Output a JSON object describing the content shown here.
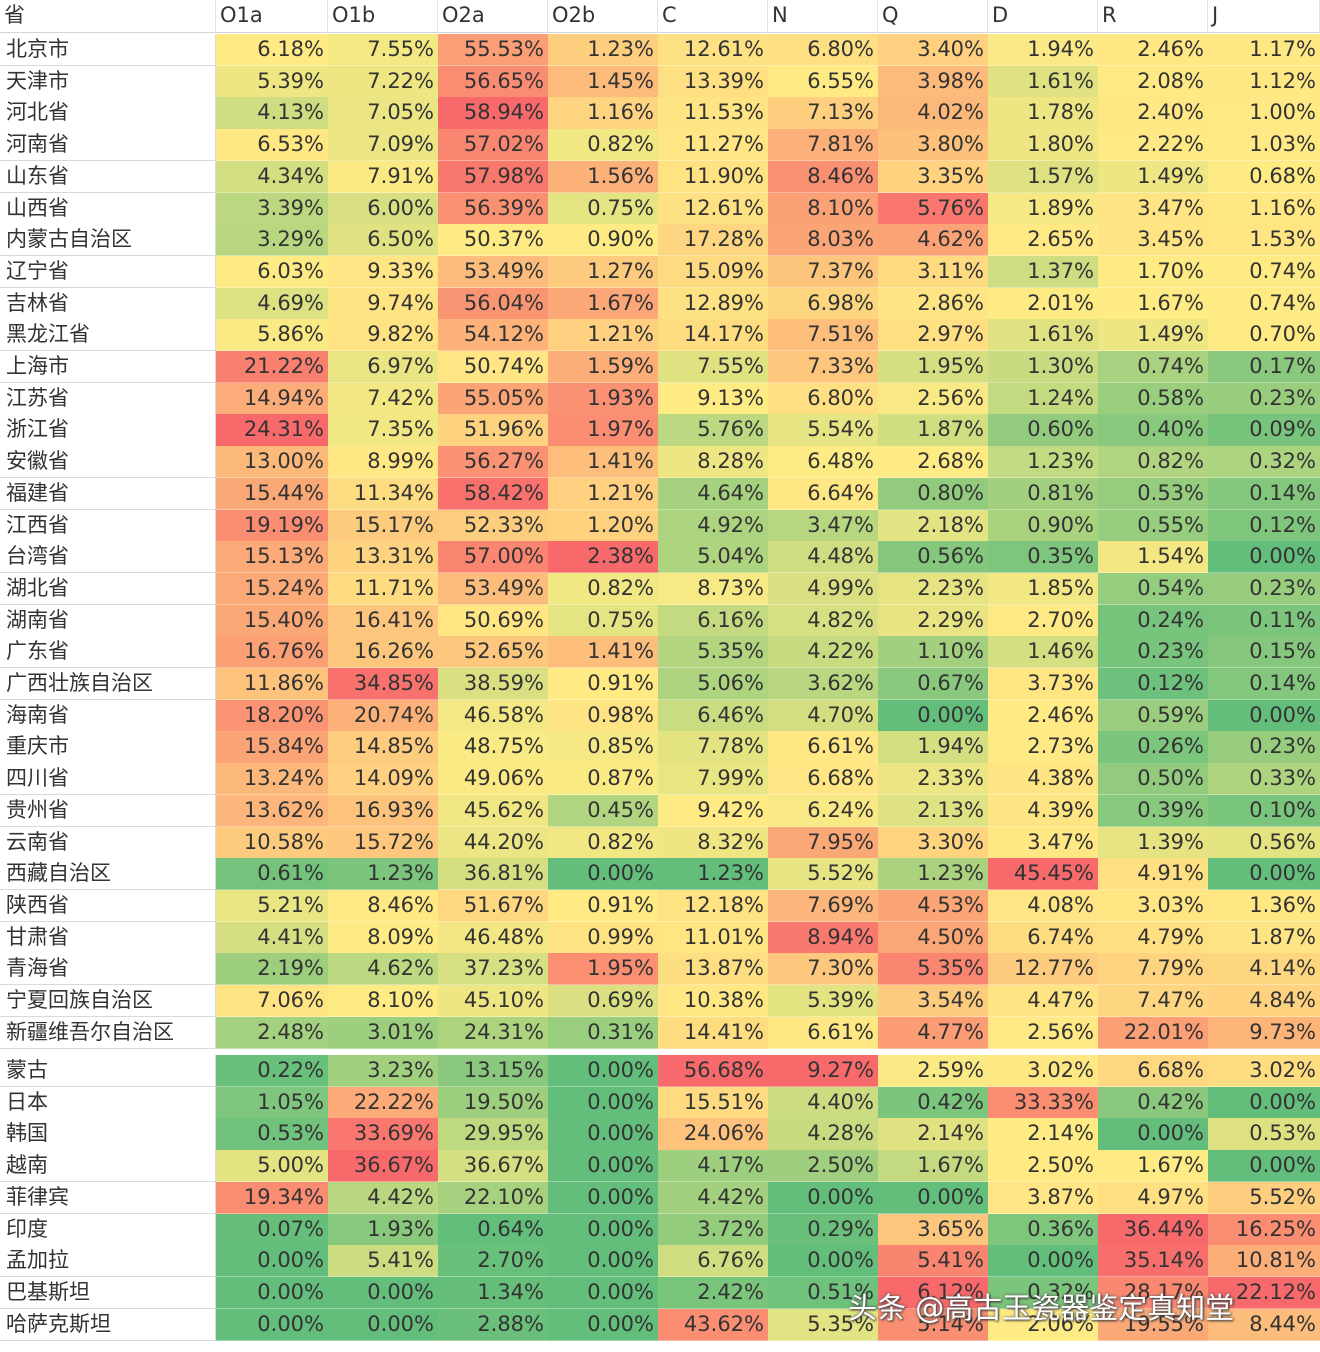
{
  "table": {
    "header": [
      "省",
      "O1a",
      "O1b",
      "O2a",
      "O2b",
      "C",
      "N",
      "Q",
      "D",
      "R",
      "J"
    ],
    "rows": [
      [
        "北京市",
        "6.18%",
        "7.55%",
        "55.53%",
        "1.23%",
        "12.61%",
        "6.80%",
        "3.40%",
        "1.94%",
        "2.46%",
        "1.17%"
      ],
      [
        "天津市",
        "5.39%",
        "7.22%",
        "56.65%",
        "1.45%",
        "13.39%",
        "6.55%",
        "3.98%",
        "1.61%",
        "2.08%",
        "1.12%"
      ],
      [
        "河北省",
        "4.13%",
        "7.05%",
        "58.94%",
        "1.16%",
        "11.53%",
        "7.13%",
        "4.02%",
        "1.78%",
        "2.40%",
        "1.00%"
      ],
      [
        "河南省",
        "6.53%",
        "7.09%",
        "57.02%",
        "0.82%",
        "11.27%",
        "7.81%",
        "3.80%",
        "1.80%",
        "2.22%",
        "1.03%"
      ],
      [
        "山东省",
        "4.34%",
        "7.91%",
        "57.98%",
        "1.56%",
        "11.90%",
        "8.46%",
        "3.35%",
        "1.57%",
        "1.49%",
        "0.68%"
      ],
      [
        "山西省",
        "3.39%",
        "6.00%",
        "56.39%",
        "0.75%",
        "12.61%",
        "8.10%",
        "5.76%",
        "1.89%",
        "3.47%",
        "1.16%"
      ],
      [
        "内蒙古自治区",
        "3.29%",
        "6.50%",
        "50.37%",
        "0.90%",
        "17.28%",
        "8.03%",
        "4.62%",
        "2.65%",
        "3.45%",
        "1.53%"
      ],
      [
        "辽宁省",
        "6.03%",
        "9.33%",
        "53.49%",
        "1.27%",
        "15.09%",
        "7.37%",
        "3.11%",
        "1.37%",
        "1.70%",
        "0.74%"
      ],
      [
        "吉林省",
        "4.69%",
        "9.74%",
        "56.04%",
        "1.67%",
        "12.89%",
        "6.98%",
        "2.86%",
        "2.01%",
        "1.67%",
        "0.74%"
      ],
      [
        "黑龙江省",
        "5.86%",
        "9.82%",
        "54.12%",
        "1.21%",
        "14.17%",
        "7.51%",
        "2.97%",
        "1.61%",
        "1.49%",
        "0.70%"
      ],
      [
        "上海市",
        "21.22%",
        "6.97%",
        "50.74%",
        "1.59%",
        "7.55%",
        "7.33%",
        "1.95%",
        "1.30%",
        "0.74%",
        "0.17%"
      ],
      [
        "江苏省",
        "14.94%",
        "7.42%",
        "55.05%",
        "1.93%",
        "9.13%",
        "6.80%",
        "2.56%",
        "1.24%",
        "0.58%",
        "0.23%"
      ],
      [
        "浙江省",
        "24.31%",
        "7.35%",
        "51.96%",
        "1.97%",
        "5.76%",
        "5.54%",
        "1.87%",
        "0.60%",
        "0.40%",
        "0.09%"
      ],
      [
        "安徽省",
        "13.00%",
        "8.99%",
        "56.27%",
        "1.41%",
        "8.28%",
        "6.48%",
        "2.68%",
        "1.23%",
        "0.82%",
        "0.32%"
      ],
      [
        "福建省",
        "15.44%",
        "11.34%",
        "58.42%",
        "1.21%",
        "4.64%",
        "6.64%",
        "0.80%",
        "0.81%",
        "0.53%",
        "0.14%"
      ],
      [
        "江西省",
        "19.19%",
        "15.17%",
        "52.33%",
        "1.20%",
        "4.92%",
        "3.47%",
        "2.18%",
        "0.90%",
        "0.55%",
        "0.12%"
      ],
      [
        "台湾省",
        "15.13%",
        "13.31%",
        "57.00%",
        "2.38%",
        "5.04%",
        "4.48%",
        "0.56%",
        "0.35%",
        "1.54%",
        "0.00%"
      ],
      [
        "湖北省",
        "15.24%",
        "11.71%",
        "53.49%",
        "0.82%",
        "8.73%",
        "4.99%",
        "2.23%",
        "1.85%",
        "0.54%",
        "0.23%"
      ],
      [
        "湖南省",
        "15.40%",
        "16.41%",
        "50.69%",
        "0.75%",
        "6.16%",
        "4.82%",
        "2.29%",
        "2.70%",
        "0.24%",
        "0.11%"
      ],
      [
        "广东省",
        "16.76%",
        "16.26%",
        "52.65%",
        "1.41%",
        "5.35%",
        "4.22%",
        "1.10%",
        "1.46%",
        "0.23%",
        "0.15%"
      ],
      [
        "广西壮族自治区",
        "11.86%",
        "34.85%",
        "38.59%",
        "0.91%",
        "5.06%",
        "3.62%",
        "0.67%",
        "3.73%",
        "0.12%",
        "0.14%"
      ],
      [
        "海南省",
        "18.20%",
        "20.74%",
        "46.58%",
        "0.98%",
        "6.46%",
        "4.70%",
        "0.00%",
        "2.46%",
        "0.59%",
        "0.00%"
      ],
      [
        "重庆市",
        "15.84%",
        "14.85%",
        "48.75%",
        "0.85%",
        "7.78%",
        "6.61%",
        "1.94%",
        "2.73%",
        "0.26%",
        "0.23%"
      ],
      [
        "四川省",
        "13.24%",
        "14.09%",
        "49.06%",
        "0.87%",
        "7.99%",
        "6.68%",
        "2.33%",
        "4.38%",
        "0.50%",
        "0.33%"
      ],
      [
        "贵州省",
        "13.62%",
        "16.93%",
        "45.62%",
        "0.45%",
        "9.42%",
        "6.24%",
        "2.13%",
        "4.39%",
        "0.39%",
        "0.10%"
      ],
      [
        "云南省",
        "10.58%",
        "15.72%",
        "44.20%",
        "0.82%",
        "8.32%",
        "7.95%",
        "3.30%",
        "3.47%",
        "1.39%",
        "0.56%"
      ],
      [
        "西藏自治区",
        "0.61%",
        "1.23%",
        "36.81%",
        "0.00%",
        "1.23%",
        "5.52%",
        "1.23%",
        "45.45%",
        "4.91%",
        "0.00%"
      ],
      [
        "陕西省",
        "5.21%",
        "8.46%",
        "51.67%",
        "0.91%",
        "12.18%",
        "7.69%",
        "4.53%",
        "4.08%",
        "3.03%",
        "1.36%"
      ],
      [
        "甘肃省",
        "4.41%",
        "8.09%",
        "46.48%",
        "0.99%",
        "11.01%",
        "8.94%",
        "4.50%",
        "6.74%",
        "4.79%",
        "1.87%"
      ],
      [
        "青海省",
        "2.19%",
        "4.62%",
        "37.23%",
        "1.95%",
        "13.87%",
        "7.30%",
        "5.35%",
        "12.77%",
        "7.79%",
        "4.14%"
      ],
      [
        "宁夏回族自治区",
        "7.06%",
        "8.10%",
        "45.10%",
        "0.69%",
        "10.38%",
        "5.39%",
        "3.54%",
        "4.47%",
        "7.47%",
        "4.84%"
      ],
      [
        "新疆维吾尔自治区",
        "2.48%",
        "3.01%",
        "24.31%",
        "0.31%",
        "14.41%",
        "6.61%",
        "4.77%",
        "2.56%",
        "22.01%",
        "9.73%"
      ],
      [
        "蒙古",
        "0.22%",
        "3.23%",
        "13.15%",
        "0.00%",
        "56.68%",
        "9.27%",
        "2.59%",
        "3.02%",
        "6.68%",
        "3.02%"
      ],
      [
        "日本",
        "1.05%",
        "22.22%",
        "19.50%",
        "0.00%",
        "15.51%",
        "4.40%",
        "0.42%",
        "33.33%",
        "0.42%",
        "0.00%"
      ],
      [
        "韩国",
        "0.53%",
        "33.69%",
        "29.95%",
        "0.00%",
        "24.06%",
        "4.28%",
        "2.14%",
        "2.14%",
        "0.00%",
        "0.53%"
      ],
      [
        "越南",
        "5.00%",
        "36.67%",
        "36.67%",
        "0.00%",
        "4.17%",
        "2.50%",
        "1.67%",
        "2.50%",
        "1.67%",
        "0.00%"
      ],
      [
        "菲律宾",
        "19.34%",
        "4.42%",
        "22.10%",
        "0.00%",
        "4.42%",
        "0.00%",
        "0.00%",
        "3.87%",
        "4.97%",
        "5.52%"
      ],
      [
        "印度",
        "0.07%",
        "1.93%",
        "0.64%",
        "0.00%",
        "3.72%",
        "0.29%",
        "3.65%",
        "0.36%",
        "36.44%",
        "16.25%"
      ],
      [
        "孟加拉",
        "0.00%",
        "5.41%",
        "2.70%",
        "0.00%",
        "6.76%",
        "0.00%",
        "5.41%",
        "0.00%",
        "35.14%",
        "10.81%"
      ],
      [
        "巴基斯坦",
        "0.00%",
        "0.00%",
        "1.34%",
        "0.00%",
        "2.42%",
        "0.51%",
        "6.12%",
        "0.32%",
        "28.17%",
        "22.12%"
      ],
      [
        "哈萨克斯坦",
        "0.00%",
        "0.00%",
        "2.88%",
        "0.00%",
        "43.62%",
        "5.35%",
        "5.14%",
        "2.06%",
        "19.55%",
        "8.44%"
      ]
    ],
    "color_scale": {
      "low": "#63be7b",
      "mid": "#ffeb84",
      "high": "#f8696b"
    }
  },
  "watermark": "头条 @高古玉瓷器鉴定真知堂"
}
